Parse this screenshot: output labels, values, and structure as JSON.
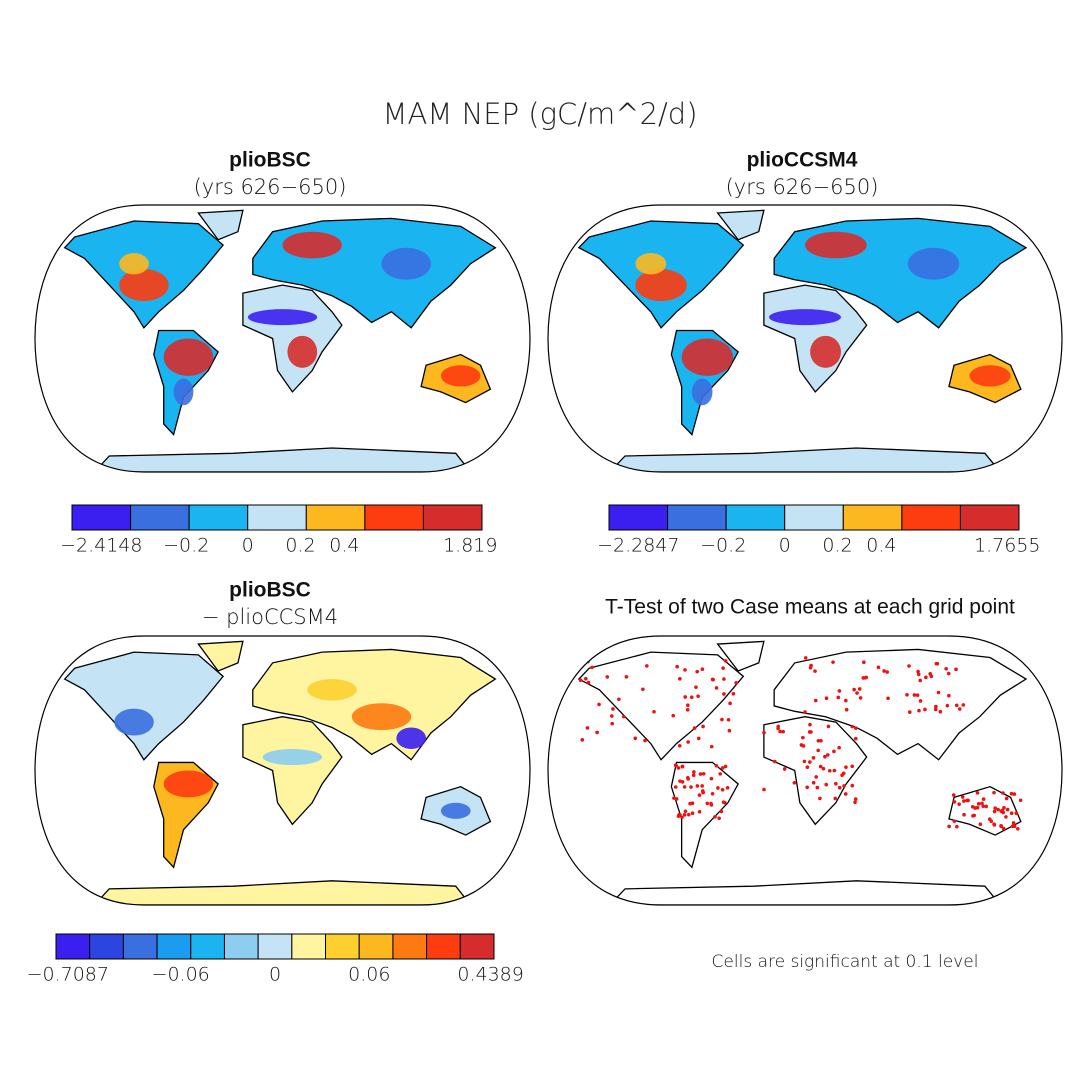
{
  "title": "MAM NEP (gC/m^2/d)",
  "panels": [
    {
      "title": "plioBSC",
      "subtitle": "(yrs 626−650)",
      "colorbar": {
        "colors": [
          "#3a1ff0",
          "#3a6fe0",
          "#1ab4f0",
          "#c4e4f6",
          "#fdb81f",
          "#fd3c10",
          "#d62c2c"
        ],
        "labels": [
          "−2.4148",
          "−0.2",
          "0",
          "0.2",
          "0.4",
          "1.819"
        ]
      }
    },
    {
      "title": "plioCCSM4",
      "subtitle": "(yrs 626−650)",
      "colorbar": {
        "colors": [
          "#3a1ff0",
          "#3a6fe0",
          "#1ab4f0",
          "#c4e4f6",
          "#fdb81f",
          "#fd3c10",
          "#d62c2c"
        ],
        "labels": [
          "−2.2847",
          "−0.2",
          "0",
          "0.2",
          "0.4",
          "1.7655"
        ]
      }
    },
    {
      "title": "plioBSC",
      "subtitle": "− plioCCSM4",
      "colorbar": {
        "colors": [
          "#3a1ff0",
          "#2b45e0",
          "#3a6fe0",
          "#1a9cf0",
          "#1ab4f0",
          "#8ccdf0",
          "#c4e4f6",
          "#fff5a0",
          "#fdd030",
          "#fdb81f",
          "#fd7a10",
          "#fd3c10",
          "#d62c2c"
        ],
        "labels": [
          "−0.7087",
          "−0.06",
          "0",
          "0.06",
          "0.4389"
        ]
      }
    },
    {
      "title": "T-Test of two Case means at each grid point",
      "note": "Cells are significant at 0.1 level"
    }
  ]
}
